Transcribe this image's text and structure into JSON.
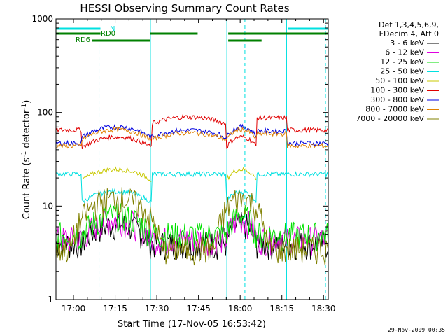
{
  "chart_data": {
    "type": "line",
    "title": "HESSI Observing Summary Count Rates",
    "xlabel": "Start Time (17-Nov-05 16:53:42)",
    "ylabel_main": "Count Rate (s",
    "ylabel_sup1": "-1",
    "ylabel_mid": " detector",
    "ylabel_sup2": "-1",
    "ylabel_end": ")",
    "yscale": "log",
    "ylim": [
      1,
      1000
    ],
    "xlim_minutes": [
      0,
      98
    ],
    "x_ticks": [
      {
        "label": "17:00",
        "value": 6.3
      },
      {
        "label": "17:15",
        "value": 21.3
      },
      {
        "label": "17:30",
        "value": 36.3
      },
      {
        "label": "17:45",
        "value": 51.3
      },
      {
        "label": "18:00",
        "value": 66.3
      },
      {
        "label": "18:15",
        "value": 81.3
      },
      {
        "label": "18:30",
        "value": 96.3
      }
    ],
    "y_ticks": [
      {
        "label": "1",
        "value": 1
      },
      {
        "label": "10",
        "value": 10
      },
      {
        "label": "100",
        "value": 100
      },
      {
        "label": "1000",
        "value": 1000
      }
    ],
    "legend_header": [
      "Det 1,3,4,5,6,9,",
      "FDecim 4, Att 0"
    ],
    "legend_position": "right",
    "series": [
      {
        "name": "3 - 6 keV",
        "color": "#000000",
        "level": 4.0
      },
      {
        "name": "6 - 12 keV",
        "color": "#e000e0",
        "level": 4.5
      },
      {
        "name": "12 - 25 keV",
        "color": "#00e000",
        "level": 5.0
      },
      {
        "name": "25 - 50 keV",
        "color": "#00e0e0",
        "level": 22
      },
      {
        "name": "50 - 100 keV",
        "color": "#c8c800",
        "level": 19
      },
      {
        "name": "100 - 300 keV",
        "color": "#e00000",
        "level": 65
      },
      {
        "name": "300 - 800 keV",
        "color": "#0000e0",
        "level": 47
      },
      {
        "name": "800 - 7000 keV",
        "color": "#e08000",
        "level": 44
      },
      {
        "name": "7000 - 20000 keV",
        "color": "#808000",
        "level": 3.2
      }
    ],
    "night_intervals_minutes": [
      [
        9.3,
        34.3
      ],
      [
        61.3,
        72.3
      ]
    ],
    "flags": [
      {
        "label": "N",
        "color": "#00e0e0"
      },
      {
        "label": "RD0",
        "color": "#008000"
      },
      {
        "label": "RD6",
        "color": "#008000"
      }
    ],
    "flag_segments_minutes": {
      "N": [
        [
          0,
          16
        ],
        [
          83.5,
          98
        ]
      ],
      "RD0": [
        [
          0,
          16
        ],
        [
          34,
          51
        ],
        [
          62,
          98
        ]
      ],
      "RD6": [
        [
          13,
          34
        ],
        [
          62,
          74
        ]
      ]
    },
    "vertical_markers_minutes": {
      "solid": [
        0,
        34,
        61.5,
        83
      ],
      "dashed": [
        15.5,
        68,
        97
      ]
    }
  },
  "footer": {
    "timestamp": "29-Nov-2009 00:35"
  }
}
